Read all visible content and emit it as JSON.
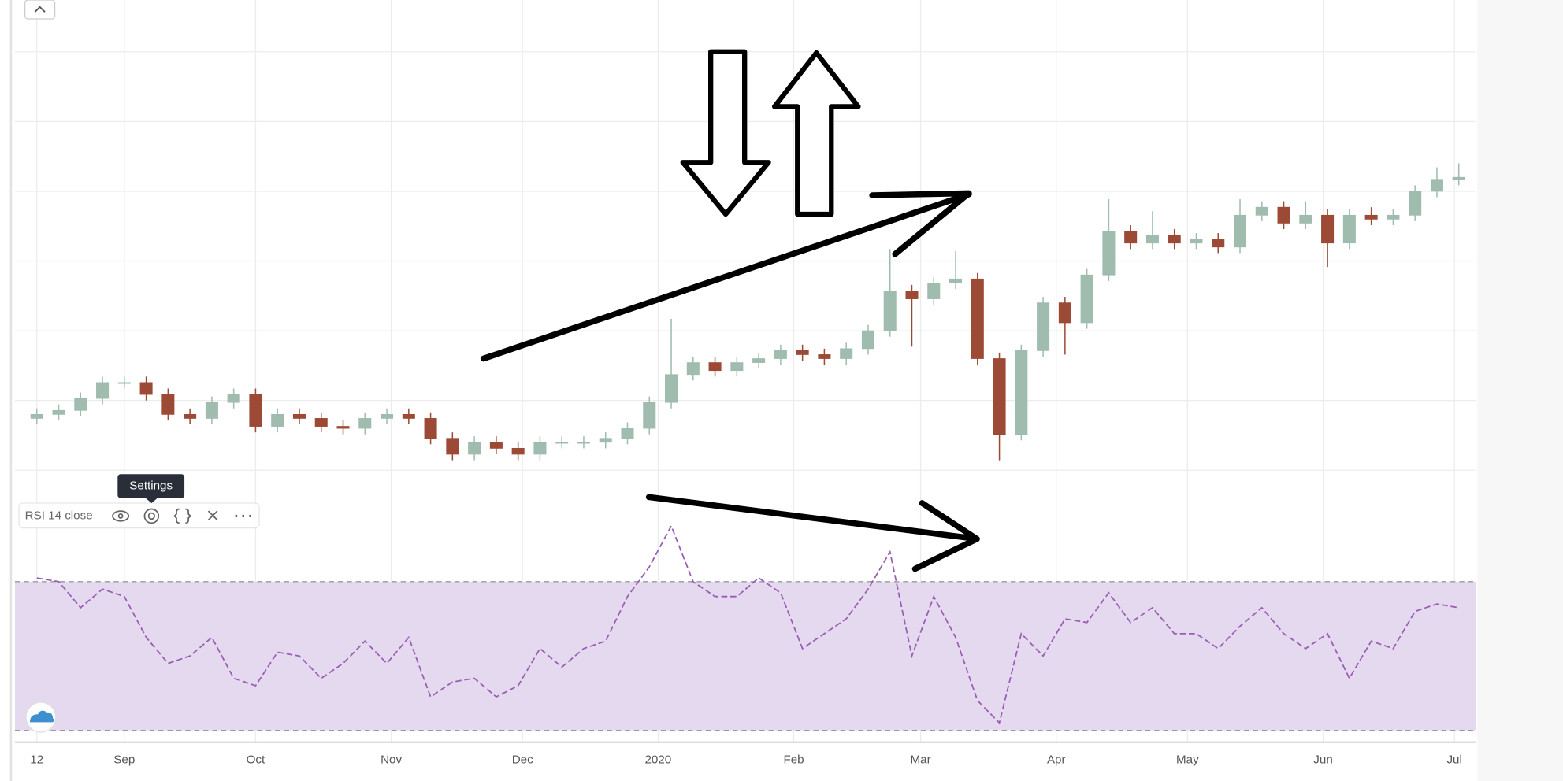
{
  "chart_data": [
    {
      "type": "candlestick",
      "x": [
        0,
        5,
        10,
        15,
        20,
        25,
        30,
        35,
        40,
        45,
        50,
        55,
        60,
        65,
        70,
        75,
        80,
        85,
        90,
        95,
        100,
        105,
        110,
        115,
        120,
        125,
        130,
        135,
        140,
        145,
        150,
        155,
        160,
        165,
        170,
        175,
        180,
        185,
        190,
        195,
        200,
        205,
        210,
        215,
        220,
        225,
        230,
        235,
        240,
        245,
        250,
        255,
        260,
        265,
        270,
        275,
        280,
        285,
        290,
        295,
        300,
        305,
        310,
        315,
        320,
        325
      ],
      "open": [
        20,
        21,
        22,
        25,
        29,
        29,
        26,
        21,
        20,
        24,
        26,
        18,
        21,
        20,
        18,
        17.5,
        20,
        21,
        20,
        15,
        11,
        14,
        12.5,
        11,
        14,
        14,
        14,
        15,
        17.5,
        24,
        31,
        34,
        32,
        34,
        35,
        37,
        36,
        35,
        37.5,
        42,
        52,
        50,
        54,
        55,
        35,
        16,
        37,
        49,
        44,
        56,
        67,
        64,
        66,
        64,
        65,
        63,
        71,
        73,
        69,
        71,
        64,
        71,
        70,
        71,
        77,
        80
      ],
      "high": [
        22.5,
        23.5,
        26.5,
        30.5,
        30.5,
        30.5,
        27.5,
        22.5,
        25.5,
        27.5,
        27.5,
        22.5,
        22.5,
        21.5,
        19.5,
        21.5,
        22.5,
        22.5,
        21.5,
        16.5,
        15.5,
        15.5,
        14,
        15.5,
        15.5,
        15.5,
        16.5,
        19,
        25.5,
        45,
        35.5,
        35.5,
        35.5,
        36.5,
        38.5,
        38.5,
        37.5,
        39,
        43.5,
        62.5,
        53.5,
        55.5,
        62,
        56.5,
        36.5,
        38.5,
        50.5,
        50.5,
        57.5,
        75,
        68.5,
        72,
        67.5,
        66.5,
        66.5,
        75,
        74.5,
        74.5,
        74.5,
        72.5,
        72.5,
        73,
        72.5,
        78.5,
        83,
        84
      ],
      "low": [
        18.5,
        19.5,
        20.5,
        23.5,
        27.5,
        24.5,
        19.5,
        18.5,
        18.5,
        22.5,
        16.5,
        16.5,
        18.5,
        16.5,
        16,
        16,
        18.5,
        18.5,
        13.5,
        9.5,
        9.5,
        11,
        9.5,
        9.5,
        12.5,
        12.5,
        12.5,
        13.5,
        16,
        22.5,
        29.5,
        30.5,
        30.5,
        32.5,
        33.5,
        34.5,
        33.5,
        33.5,
        36,
        40.5,
        38,
        48.5,
        52.5,
        33.5,
        9.5,
        14.5,
        35.5,
        36,
        42.5,
        54.5,
        62.5,
        62.5,
        62.5,
        62.5,
        61.5,
        61.5,
        69.5,
        67.5,
        67.5,
        58,
        62.5,
        68.5,
        68.5,
        69.5,
        75.5,
        78.5
      ],
      "close": [
        21,
        22,
        25,
        29,
        29,
        26,
        21,
        20,
        24,
        26,
        18,
        21,
        20,
        18,
        17.5,
        20,
        21,
        20,
        15,
        11,
        14,
        12.5,
        11,
        14,
        14,
        14,
        15,
        17.5,
        24,
        31,
        34,
        32,
        34,
        35,
        37,
        36,
        35,
        37.5,
        42,
        52,
        50,
        54,
        55,
        35,
        16,
        37,
        49,
        44,
        56,
        67,
        64,
        66,
        64,
        65,
        63,
        71,
        73,
        69,
        71,
        64,
        71,
        70,
        71,
        77,
        80,
        80.5
      ],
      "up_color": "#9fbcae",
      "down_color": "#9c4a35",
      "xlim": [
        -5,
        329
      ],
      "ylim": [
        0,
        125
      ],
      "yticks": [
        7,
        24.5,
        42,
        59.5,
        77,
        94.5,
        112
      ],
      "xticks": [
        {
          "value": 0,
          "label": "12"
        },
        {
          "value": 20,
          "label": "Sep"
        },
        {
          "value": 50,
          "label": "Oct"
        },
        {
          "value": 81,
          "label": "Nov"
        },
        {
          "value": 111,
          "label": "Dec"
        },
        {
          "value": 142,
          "label": "2020"
        },
        {
          "value": 173,
          "label": "Feb"
        },
        {
          "value": 202,
          "label": "Mar"
        },
        {
          "value": 233,
          "label": "Apr"
        },
        {
          "value": 263,
          "label": "May"
        },
        {
          "value": 294,
          "label": "Jun"
        },
        {
          "value": 324,
          "label": "Jul"
        }
      ],
      "grid": true
    },
    {
      "type": "line",
      "x": [
        0,
        5,
        10,
        15,
        20,
        25,
        30,
        35,
        40,
        45,
        50,
        55,
        60,
        65,
        70,
        75,
        80,
        85,
        90,
        95,
        100,
        105,
        110,
        115,
        120,
        125,
        130,
        135,
        140,
        145,
        150,
        155,
        160,
        165,
        170,
        175,
        180,
        185,
        190,
        195,
        200,
        205,
        210,
        215,
        220,
        225,
        230,
        235,
        240,
        245,
        250,
        255,
        260,
        265,
        270,
        275,
        280,
        285,
        290,
        295,
        300,
        305,
        310,
        315,
        320,
        325
      ],
      "series": [
        {
          "name": "RSI 14 close",
          "color": "#9a5cb4",
          "values": [
            71,
            70,
            63,
            68,
            66,
            55,
            48,
            50,
            55,
            44,
            42,
            51,
            50,
            44,
            48,
            54,
            48,
            55,
            39,
            43,
            44,
            39,
            42,
            52,
            47,
            52,
            54,
            66,
            74,
            85,
            70,
            66,
            66,
            71,
            67,
            52,
            56,
            60,
            68,
            78,
            50,
            66,
            55,
            38,
            32,
            56,
            50,
            60,
            59,
            67,
            59,
            63,
            56,
            56,
            52,
            58,
            63,
            56,
            52,
            56,
            44,
            54,
            52,
            62,
            64,
            63
          ]
        }
      ],
      "band": [
        30,
        70
      ],
      "band_color": "#e4d9ee",
      "xlim": [
        -5,
        329
      ],
      "ylim": [
        0,
        100
      ]
    }
  ],
  "ui": {
    "tooltip": "Settings"
  }
}
